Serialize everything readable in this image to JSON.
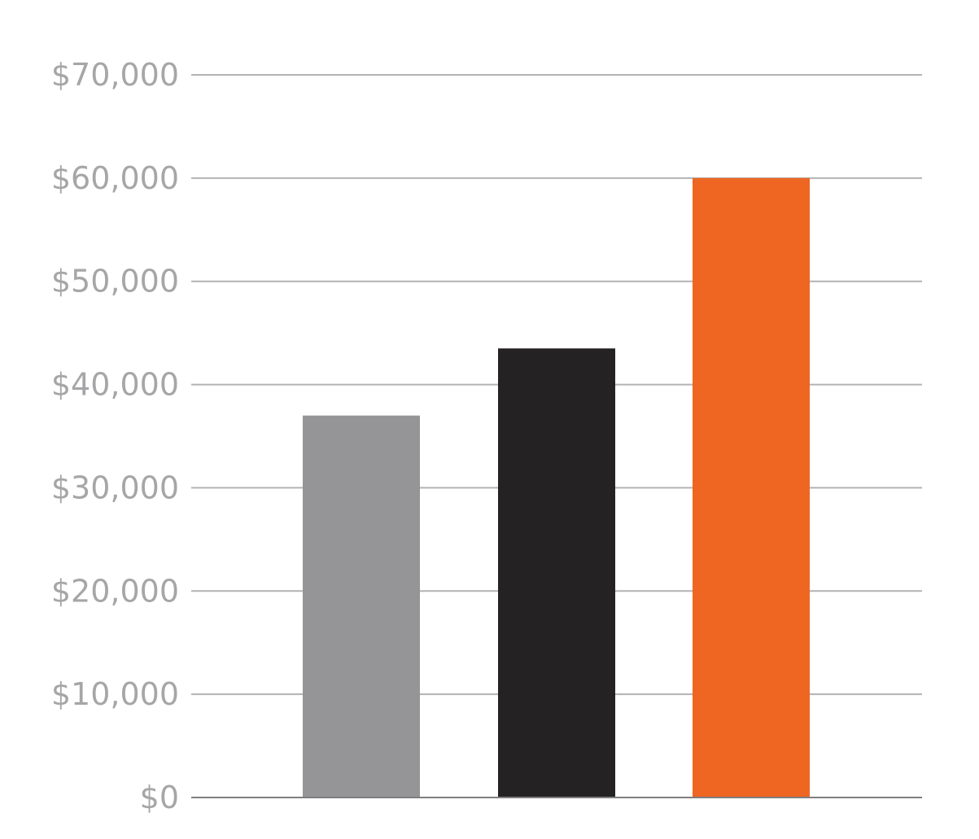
{
  "chart_data": {
    "type": "bar",
    "categories": [
      "",
      "",
      ""
    ],
    "values": [
      37000,
      43500,
      60000
    ],
    "bar_colors": [
      "#959598",
      "#252223",
      "#ee6622"
    ],
    "y_ticks": [
      0,
      10000,
      20000,
      30000,
      40000,
      50000,
      60000,
      70000
    ],
    "y_tick_labels": [
      "$0",
      "$10,000",
      "$20,000",
      "$30,000",
      "$40,000",
      "$50,000",
      "$60,000",
      "$70,000"
    ],
    "ylim": [
      0,
      70000
    ],
    "grid": true,
    "legend": "none",
    "title": "",
    "xlabel": "",
    "ylabel": ""
  }
}
